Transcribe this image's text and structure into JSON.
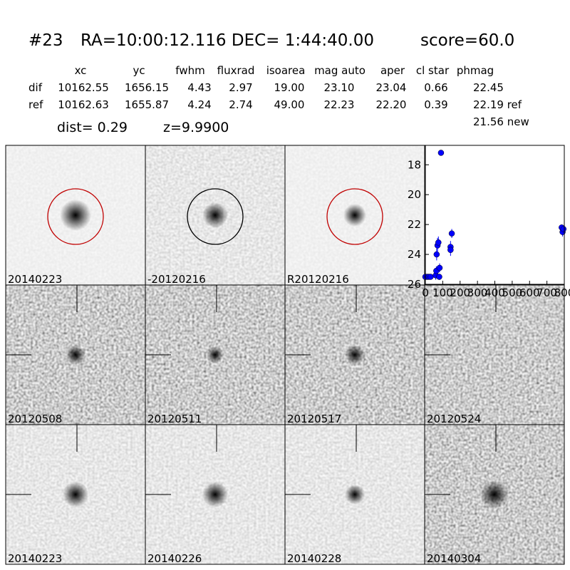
{
  "header": {
    "id": "#23",
    "coords": "RA=10:00:12.116 DEC= 1:44:40.00",
    "score": "score=60.0"
  },
  "table": {
    "columns": [
      "xc",
      "yc",
      "fwhm",
      "fluxrad",
      "isoarea",
      "mag auto",
      "aper",
      "cl star",
      "phmag"
    ],
    "rows": [
      [
        "dif",
        "10162.55",
        "1656.15",
        "4.43",
        "2.97",
        "19.00",
        "23.10",
        "23.04",
        "0.66",
        "22.45"
      ],
      [
        "ref",
        "10162.63",
        "1655.87",
        "4.24",
        "2.74",
        "49.00",
        "22.23",
        "22.20",
        "0.39",
        "22.19 ref"
      ]
    ],
    "extra": "21.56 new"
  },
  "dist": "dist=  0.29",
  "z": "z=9.9900",
  "panels": [
    {
      "label": "20140223"
    },
    {
      "label": "-20120216"
    },
    {
      "label": "R20120216"
    },
    {
      "label": "20120508"
    },
    {
      "label": "20120511"
    },
    {
      "label": "20120517"
    },
    {
      "label": "20120524"
    },
    {
      "label": "20140223",
      "label_color": "#ff0000"
    },
    {
      "label": "20140226"
    },
    {
      "label": "20140228"
    },
    {
      "label": "20140304"
    }
  ],
  "chart_data": {
    "type": "scatter",
    "color": "#0000ff",
    "x": [
      0,
      10,
      20,
      30,
      60,
      63,
      65,
      70,
      75,
      80,
      82,
      90,
      145,
      145,
      152,
      785,
      790,
      795
    ],
    "y": [
      25.5,
      25.5,
      25.5,
      25.5,
      25.4,
      25.1,
      24.0,
      23.4,
      23.2,
      25.5,
      24.9,
      17.2,
      23.5,
      23.7,
      22.6,
      22.2,
      22.5,
      22.3
    ],
    "errors": [
      0.1,
      0.1,
      0.1,
      0.1,
      0.3,
      0.3,
      0.4,
      0.5,
      0.4,
      0.2,
      0.3,
      0.1,
      0.4,
      0.4,
      0.3,
      0.2,
      0.3,
      0.2
    ],
    "xlim": [
      0,
      800
    ],
    "ylim": [
      26,
      16.7
    ],
    "xticks": [
      0,
      100,
      200,
      300,
      400,
      500,
      600,
      700,
      800
    ],
    "yticks": [
      18,
      20,
      22,
      24,
      26
    ]
  }
}
